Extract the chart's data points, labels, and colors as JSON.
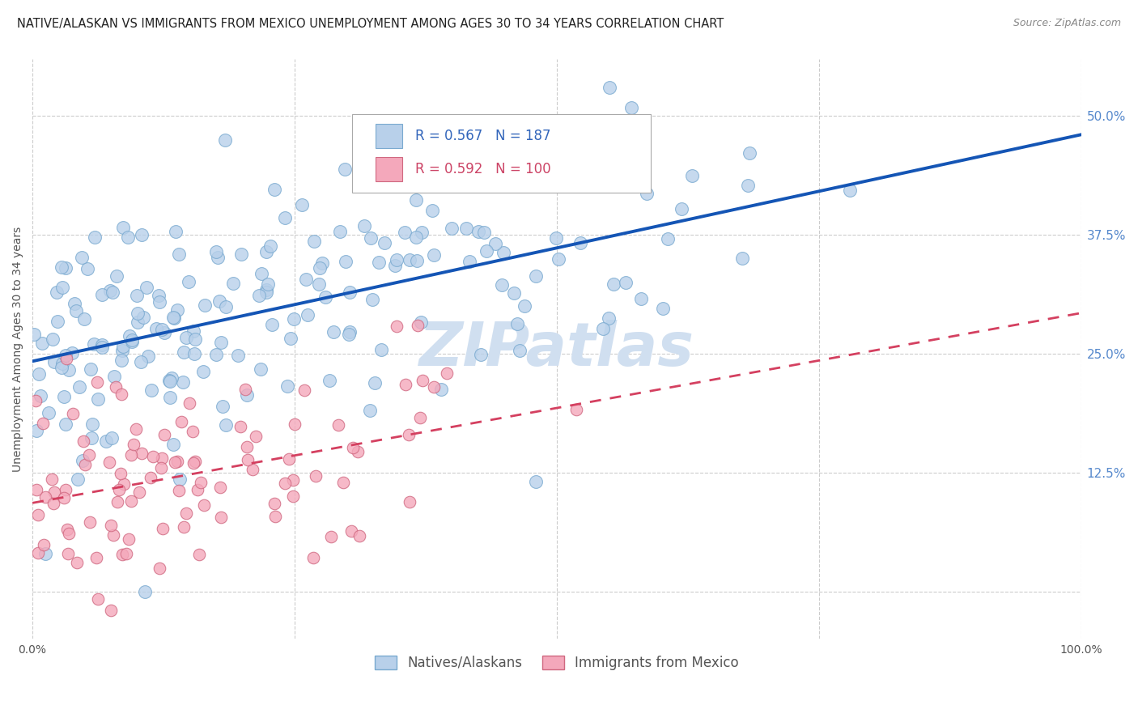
{
  "title": "NATIVE/ALASKAN VS IMMIGRANTS FROM MEXICO UNEMPLOYMENT AMONG AGES 30 TO 34 YEARS CORRELATION CHART",
  "source": "Source: ZipAtlas.com",
  "ylabel": "Unemployment Among Ages 30 to 34 years",
  "xlim": [
    0.0,
    1.0
  ],
  "ylim": [
    -0.05,
    0.56
  ],
  "xticks": [
    0.0,
    0.25,
    0.5,
    0.75,
    1.0
  ],
  "xticklabels": [
    "0.0%",
    "",
    "",
    "",
    "100.0%"
  ],
  "ytick_positions": [
    0.0,
    0.125,
    0.25,
    0.375,
    0.5
  ],
  "yticklabels": [
    "",
    "12.5%",
    "25.0%",
    "37.5%",
    "50.0%"
  ],
  "blue_R": 0.567,
  "blue_N": 187,
  "pink_R": 0.592,
  "pink_N": 100,
  "blue_color": "#b8d0ea",
  "blue_edge": "#7aaad0",
  "pink_color": "#f4a8bb",
  "pink_edge": "#d06880",
  "blue_line_color": "#1455b5",
  "pink_line_color": "#d44060",
  "watermark": "ZIPatlas",
  "watermark_color": "#d0dff0",
  "background_color": "#ffffff",
  "grid_color": "#cccccc",
  "grid_style": "--",
  "title_fontsize": 10.5,
  "source_fontsize": 9,
  "legend_fontsize": 12,
  "axis_label_fontsize": 10,
  "ytick_color": "#5588cc",
  "xtick_color": "#555555",
  "blue_line_intercept": 0.005,
  "blue_line_slope": 0.27,
  "pink_line_intercept": -0.025,
  "pink_line_slope": 0.265
}
